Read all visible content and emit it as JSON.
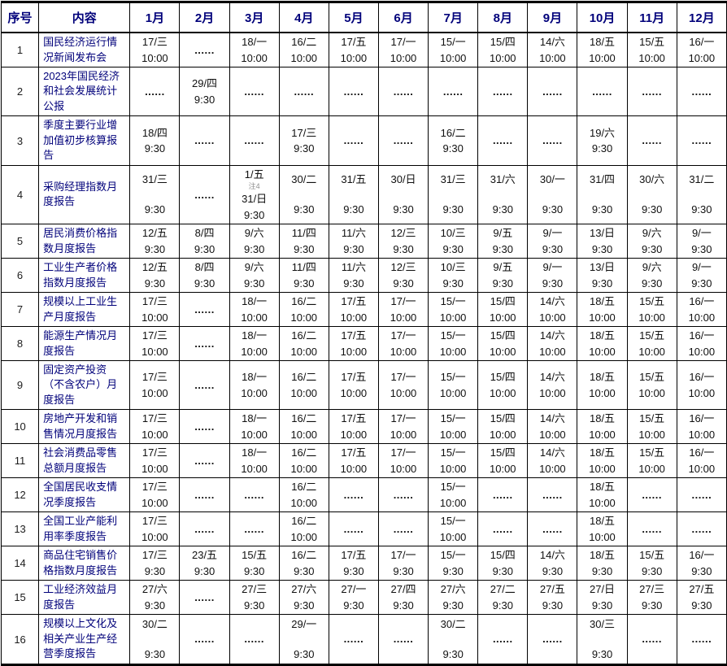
{
  "colors": {
    "header_text": "#00007a",
    "content_text": "#00007a",
    "value_text": "#101010",
    "note_text": "#8f8f8f",
    "border": "#000000",
    "table_background": "#ffffff"
  },
  "table": {
    "dots_symbol": "......",
    "headers": [
      "序号",
      "内容",
      "1月",
      "2月",
      "3月",
      "4月",
      "5月",
      "6月",
      "7月",
      "8月",
      "9月",
      "10月",
      "11月",
      "12月"
    ],
    "rows": [
      {
        "no": "1",
        "content": "国民经济运行情况新闻发布会",
        "cells": [
          [
            "17/三",
            "10:00"
          ],
          [
            "......"
          ],
          [
            "18/一",
            "10:00"
          ],
          [
            "16/二",
            "10:00"
          ],
          [
            "17/五",
            "10:00"
          ],
          [
            "17/一",
            "10:00"
          ],
          [
            "15/一",
            "10:00"
          ],
          [
            "15/四",
            "10:00"
          ],
          [
            "14/六",
            "10:00"
          ],
          [
            "18/五",
            "10:00"
          ],
          [
            "15/五",
            "10:00"
          ],
          [
            "16/一",
            "10:00"
          ]
        ]
      },
      {
        "no": "2",
        "content": "2023年国民经济和社会发展统计公报",
        "cells": [
          [
            "......"
          ],
          [
            "29/四",
            "9:30"
          ],
          [
            "......"
          ],
          [
            "......"
          ],
          [
            "......"
          ],
          [
            "......"
          ],
          [
            "......"
          ],
          [
            "......"
          ],
          [
            "......"
          ],
          [
            "......"
          ],
          [
            "......"
          ],
          [
            "......"
          ]
        ]
      },
      {
        "no": "3",
        "content": "季度主要行业增加值初步核算报告",
        "cells": [
          [
            "18/四",
            "9:30"
          ],
          [
            "......"
          ],
          [
            "......"
          ],
          [
            "17/三",
            "9:30"
          ],
          [
            "......"
          ],
          [
            "......"
          ],
          [
            "16/二",
            "9:30"
          ],
          [
            "......"
          ],
          [
            "......"
          ],
          [
            "19/六",
            "9:30"
          ],
          [
            "......"
          ],
          [
            "......"
          ]
        ]
      },
      {
        "no": "4",
        "content": "采购经理指数月度报告",
        "cells": [
          [
            "31/三",
            "",
            "9:30"
          ],
          [
            "......"
          ],
          [
            "1/五",
            "注4",
            "31/日",
            "9:30"
          ],
          [
            "30/二",
            "",
            "9:30"
          ],
          [
            "31/五",
            "",
            "9:30"
          ],
          [
            "30/日",
            "",
            "9:30"
          ],
          [
            "31/三",
            "",
            "9:30"
          ],
          [
            "31/六",
            "",
            "9:30"
          ],
          [
            "30/一",
            "",
            "9:30"
          ],
          [
            "31/四",
            "",
            "9:30"
          ],
          [
            "30/六",
            "",
            "9:30"
          ],
          [
            "31/二",
            "",
            "9:30"
          ]
        ]
      },
      {
        "no": "5",
        "content": "居民消费价格指数月度报告",
        "cells": [
          [
            "12/五",
            "9:30"
          ],
          [
            "8/四",
            "9:30"
          ],
          [
            "9/六",
            "9:30"
          ],
          [
            "11/四",
            "9:30"
          ],
          [
            "11/六",
            "9:30"
          ],
          [
            "12/三",
            "9:30"
          ],
          [
            "10/三",
            "9:30"
          ],
          [
            "9/五",
            "9:30"
          ],
          [
            "9/一",
            "9:30"
          ],
          [
            "13/日",
            "9:30"
          ],
          [
            "9/六",
            "9:30"
          ],
          [
            "9/一",
            "9:30"
          ]
        ]
      },
      {
        "no": "6",
        "content": "工业生产者价格指数月度报告",
        "cells": [
          [
            "12/五",
            "9:30"
          ],
          [
            "8/四",
            "9:30"
          ],
          [
            "9/六",
            "9:30"
          ],
          [
            "11/四",
            "9:30"
          ],
          [
            "11/六",
            "9:30"
          ],
          [
            "12/三",
            "9:30"
          ],
          [
            "10/三",
            "9:30"
          ],
          [
            "9/五",
            "9:30"
          ],
          [
            "9/一",
            "9:30"
          ],
          [
            "13/日",
            "9:30"
          ],
          [
            "9/六",
            "9:30"
          ],
          [
            "9/一",
            "9:30"
          ]
        ]
      },
      {
        "no": "7",
        "content": "规模以上工业生产月度报告",
        "cells": [
          [
            "17/三",
            "10:00"
          ],
          [
            "......"
          ],
          [
            "18/一",
            "10:00"
          ],
          [
            "16/二",
            "10:00"
          ],
          [
            "17/五",
            "10:00"
          ],
          [
            "17/一",
            "10:00"
          ],
          [
            "15/一",
            "10:00"
          ],
          [
            "15/四",
            "10:00"
          ],
          [
            "14/六",
            "10:00"
          ],
          [
            "18/五",
            "10:00"
          ],
          [
            "15/五",
            "10:00"
          ],
          [
            "16/一",
            "10:00"
          ]
        ]
      },
      {
        "no": "8",
        "content": "能源生产情况月度报告",
        "cells": [
          [
            "17/三",
            "10:00"
          ],
          [
            "......"
          ],
          [
            "18/一",
            "10:00"
          ],
          [
            "16/二",
            "10:00"
          ],
          [
            "17/五",
            "10:00"
          ],
          [
            "17/一",
            "10:00"
          ],
          [
            "15/一",
            "10:00"
          ],
          [
            "15/四",
            "10:00"
          ],
          [
            "14/六",
            "10:00"
          ],
          [
            "18/五",
            "10:00"
          ],
          [
            "15/五",
            "10:00"
          ],
          [
            "16/一",
            "10:00"
          ]
        ]
      },
      {
        "no": "9",
        "content": "固定资产投资（不含农户）月度报告",
        "cells": [
          [
            "17/三",
            "10:00"
          ],
          [
            "......"
          ],
          [
            "18/一",
            "10:00"
          ],
          [
            "16/二",
            "10:00"
          ],
          [
            "17/五",
            "10:00"
          ],
          [
            "17/一",
            "10:00"
          ],
          [
            "15/一",
            "10:00"
          ],
          [
            "15/四",
            "10:00"
          ],
          [
            "14/六",
            "10:00"
          ],
          [
            "18/五",
            "10:00"
          ],
          [
            "15/五",
            "10:00"
          ],
          [
            "16/一",
            "10:00"
          ]
        ]
      },
      {
        "no": "10",
        "content": "房地产开发和销售情况月度报告",
        "cells": [
          [
            "17/三",
            "10:00"
          ],
          [
            "......"
          ],
          [
            "18/一",
            "10:00"
          ],
          [
            "16/二",
            "10:00"
          ],
          [
            "17/五",
            "10:00"
          ],
          [
            "17/一",
            "10:00"
          ],
          [
            "15/一",
            "10:00"
          ],
          [
            "15/四",
            "10:00"
          ],
          [
            "14/六",
            "10:00"
          ],
          [
            "18/五",
            "10:00"
          ],
          [
            "15/五",
            "10:00"
          ],
          [
            "16/一",
            "10:00"
          ]
        ]
      },
      {
        "no": "11",
        "content": "社会消费品零售总额月度报告",
        "cells": [
          [
            "17/三",
            "10:00"
          ],
          [
            "......"
          ],
          [
            "18/一",
            "10:00"
          ],
          [
            "16/二",
            "10:00"
          ],
          [
            "17/五",
            "10:00"
          ],
          [
            "17/一",
            "10:00"
          ],
          [
            "15/一",
            "10:00"
          ],
          [
            "15/四",
            "10:00"
          ],
          [
            "14/六",
            "10:00"
          ],
          [
            "18/五",
            "10:00"
          ],
          [
            "15/五",
            "10:00"
          ],
          [
            "16/一",
            "10:00"
          ]
        ]
      },
      {
        "no": "12",
        "content": "全国居民收支情况季度报告",
        "cells": [
          [
            "17/三",
            "10:00"
          ],
          [
            "......"
          ],
          [
            "......"
          ],
          [
            "16/二",
            "10:00"
          ],
          [
            "......"
          ],
          [
            "......"
          ],
          [
            "15/一",
            "10:00"
          ],
          [
            "......"
          ],
          [
            "......"
          ],
          [
            "18/五",
            "10:00"
          ],
          [
            "......"
          ],
          [
            "......"
          ]
        ]
      },
      {
        "no": "13",
        "content": "全国工业产能利用率季度报告",
        "cells": [
          [
            "17/三",
            "10:00"
          ],
          [
            "......"
          ],
          [
            "......"
          ],
          [
            "16/二",
            "10:00"
          ],
          [
            "......"
          ],
          [
            "......"
          ],
          [
            "15/一",
            "10:00"
          ],
          [
            "......"
          ],
          [
            "......"
          ],
          [
            "18/五",
            "10:00"
          ],
          [
            "......"
          ],
          [
            "......"
          ]
        ]
      },
      {
        "no": "14",
        "content": "商品住宅销售价格指数月度报告",
        "cells": [
          [
            "17/三",
            "9:30"
          ],
          [
            "23/五",
            "9:30"
          ],
          [
            "15/五",
            "9:30"
          ],
          [
            "16/二",
            "9:30"
          ],
          [
            "17/五",
            "9:30"
          ],
          [
            "17/一",
            "9:30"
          ],
          [
            "15/一",
            "9:30"
          ],
          [
            "15/四",
            "9:30"
          ],
          [
            "14/六",
            "9:30"
          ],
          [
            "18/五",
            "9:30"
          ],
          [
            "15/五",
            "9:30"
          ],
          [
            "16/一",
            "9:30"
          ]
        ]
      },
      {
        "no": "15",
        "content": "工业经济效益月度报告",
        "cells": [
          [
            "27/六",
            "9:30"
          ],
          [
            "......"
          ],
          [
            "27/三",
            "9:30"
          ],
          [
            "27/六",
            "9:30"
          ],
          [
            "27/一",
            "9:30"
          ],
          [
            "27/四",
            "9:30"
          ],
          [
            "27/六",
            "9:30"
          ],
          [
            "27/二",
            "9:30"
          ],
          [
            "27/五",
            "9:30"
          ],
          [
            "27/日",
            "9:30"
          ],
          [
            "27/三",
            "9:30"
          ],
          [
            "27/五",
            "9:30"
          ]
        ]
      },
      {
        "no": "16",
        "content": "规模以上文化及相关产业生产经营季度报告",
        "cells": [
          [
            "30/二",
            "",
            "9:30"
          ],
          [
            "......"
          ],
          [
            "......"
          ],
          [
            "29/一",
            "",
            "9:30"
          ],
          [
            "......"
          ],
          [
            "......"
          ],
          [
            "30/二",
            "",
            "9:30"
          ],
          [
            "......"
          ],
          [
            "......"
          ],
          [
            "30/三",
            "",
            "9:30"
          ],
          [
            "......"
          ],
          [
            "......"
          ]
        ]
      }
    ]
  }
}
